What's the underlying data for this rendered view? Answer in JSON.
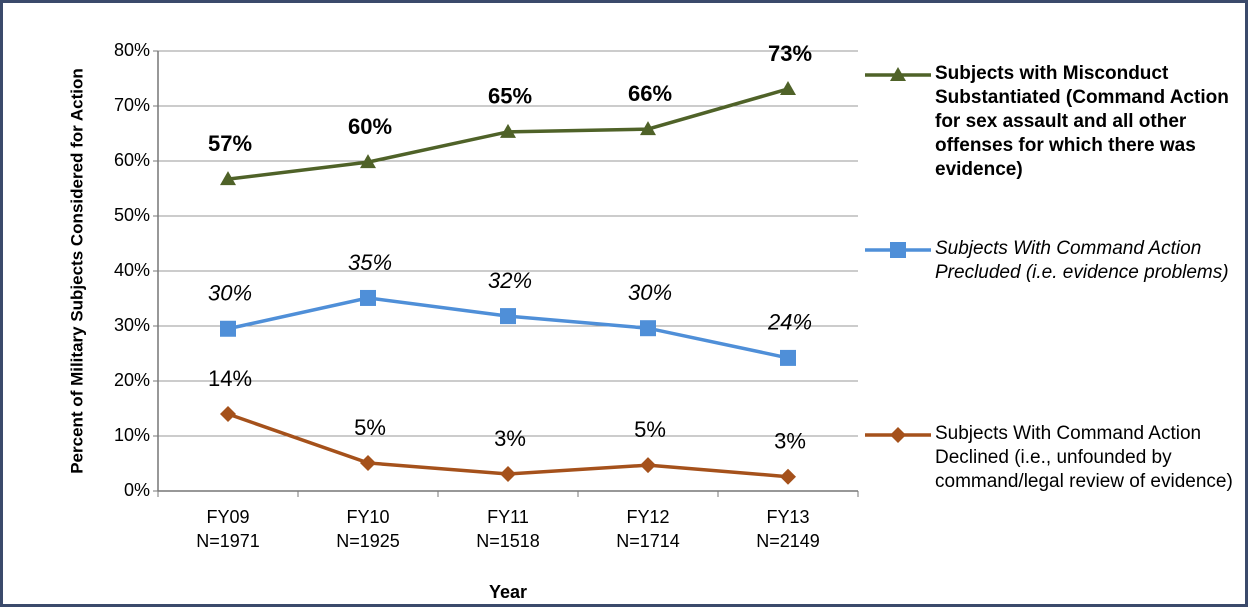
{
  "chart_data": {
    "type": "line",
    "y_label": "Percent of Military Subjects Considered for Action",
    "x_label": "Year",
    "categories": [
      "FY09",
      "FY10",
      "FY11",
      "FY12",
      "FY13"
    ],
    "n_labels": [
      "N=1971",
      "N=1925",
      "N=1518",
      "N=1714",
      "N=2149"
    ],
    "ylim": [
      0,
      80
    ],
    "yticks": [
      {
        "value": 0,
        "label": "0%"
      },
      {
        "value": 10,
        "label": "10%"
      },
      {
        "value": 20,
        "label": "20%"
      },
      {
        "value": 30,
        "label": "30%"
      },
      {
        "value": 40,
        "label": "40%"
      },
      {
        "value": 50,
        "label": "50%"
      },
      {
        "value": 60,
        "label": "60%"
      },
      {
        "value": 70,
        "label": "70%"
      },
      {
        "value": 80,
        "label": "80%"
      }
    ],
    "grid": true,
    "legend": "right",
    "series": [
      {
        "name": "Subjects with Misconduct Substantiated (Command Action for sex assault and all other offenses for which there was evidence)",
        "color": "#4f6228",
        "marker": "triangle",
        "style": "bold",
        "values": [
          56.7,
          59.8,
          65.3,
          65.8,
          73.1
        ],
        "value_labels": [
          "57%",
          "60%",
          "65%",
          "66%",
          "73%"
        ]
      },
      {
        "name": "Subjects With Command Action Precluded (i.e. evidence problems)",
        "color": "#4f8fd8",
        "marker": "square",
        "style": "italic",
        "values": [
          29.5,
          35.1,
          31.8,
          29.6,
          24.2
        ],
        "value_labels": [
          "30%",
          "35%",
          "32%",
          "30%",
          "24%"
        ]
      },
      {
        "name": "Subjects With Command Action Declined (i.e., unfounded by command/legal review of evidence)",
        "color": "#a5511b",
        "marker": "diamond",
        "style": "normal",
        "values": [
          14,
          5.1,
          3.1,
          4.7,
          2.6
        ],
        "value_labels": [
          "14%",
          "5%",
          "3%",
          "5%",
          "3%"
        ]
      }
    ]
  }
}
